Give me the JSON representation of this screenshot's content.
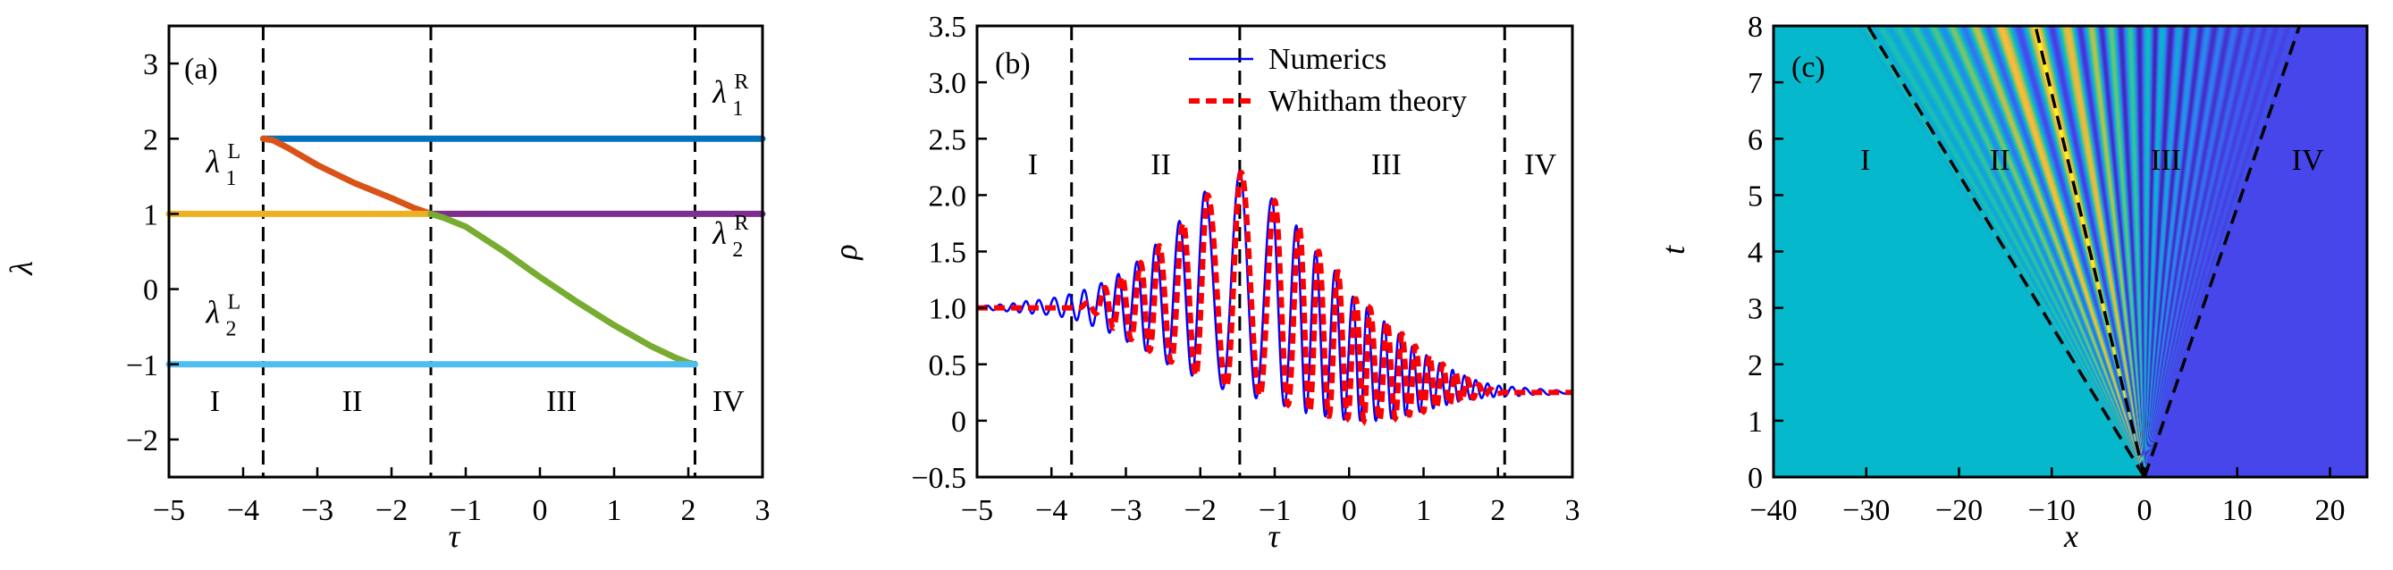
{
  "chart_data": [
    {
      "type": "line",
      "panel_label": "(a)",
      "xlabel": "τ",
      "ylabel": "λ",
      "xlim": [
        -5,
        3
      ],
      "ylim": [
        -2.5,
        3.5
      ],
      "xticks": [
        -5,
        -4,
        -3,
        -2,
        -1,
        0,
        1,
        2,
        3
      ],
      "xtick_labels": [
        "−5",
        "−4",
        "−3",
        "−2",
        "−1",
        "0",
        "1",
        "2",
        "3"
      ],
      "yticks": [
        -2,
        -1,
        0,
        1,
        2,
        3
      ],
      "ytick_labels": [
        "−2",
        "−1",
        "0",
        "1",
        "2",
        "3"
      ],
      "boundaries": [
        -3.73,
        -1.47,
        2.09
      ],
      "regions": [
        "I",
        "II",
        "III",
        "IV"
      ],
      "series": [
        {
          "name": "lambda1R",
          "color": "#0072BD",
          "points": [
            [
              -3.73,
              2.0
            ],
            [
              3.0,
              2.0
            ]
          ]
        },
        {
          "name": "lambda-orange",
          "color": "#D95319",
          "points": [
            [
              -3.73,
              2.0
            ],
            [
              -3.6,
              1.98
            ],
            [
              -3.4,
              1.88
            ],
            [
              -3.0,
              1.65
            ],
            [
              -2.5,
              1.41
            ],
            [
              -2.0,
              1.21
            ],
            [
              -1.7,
              1.08
            ],
            [
              -1.47,
              1.0
            ]
          ]
        },
        {
          "name": "lambda1L",
          "color": "#EDB120",
          "points": [
            [
              -5.0,
              1.0
            ],
            [
              -1.47,
              1.0
            ]
          ]
        },
        {
          "name": "lambda2R",
          "color": "#7E2F8E",
          "points": [
            [
              -1.47,
              1.0
            ],
            [
              3.0,
              1.0
            ]
          ]
        },
        {
          "name": "lambda-green",
          "color": "#77AC30",
          "points": [
            [
              -1.47,
              1.0
            ],
            [
              -1.3,
              0.95
            ],
            [
              -1.0,
              0.83
            ],
            [
              -0.5,
              0.51
            ],
            [
              0.0,
              0.16
            ],
            [
              0.5,
              -0.17
            ],
            [
              1.0,
              -0.48
            ],
            [
              1.5,
              -0.76
            ],
            [
              1.8,
              -0.9
            ],
            [
              2.0,
              -0.98
            ],
            [
              2.09,
              -1.0
            ]
          ]
        },
        {
          "name": "lambda2L",
          "color": "#4DBEEE",
          "points": [
            [
              -5.0,
              -1.0
            ],
            [
              2.09,
              -1.0
            ]
          ]
        }
      ],
      "annotations": [
        {
          "base": "λ",
          "sup": "R",
          "sub": "1"
        },
        {
          "base": "λ",
          "sup": "R",
          "sub": "2"
        },
        {
          "base": "λ",
          "sup": "L",
          "sub": "1"
        },
        {
          "base": "λ",
          "sup": "L",
          "sub": "2"
        }
      ]
    },
    {
      "type": "line",
      "panel_label": "(b)",
      "xlabel": "τ",
      "ylabel": "ρ",
      "xlim": [
        -5,
        3
      ],
      "ylim": [
        -0.5,
        3.5
      ],
      "xticks": [
        -5,
        -4,
        -3,
        -2,
        -1,
        0,
        1,
        2,
        3
      ],
      "xtick_labels": [
        "−5",
        "−4",
        "−3",
        "−2",
        "−1",
        "0",
        "1",
        "2",
        "3"
      ],
      "yticks": [
        -0.5,
        0,
        0.5,
        1.0,
        1.5,
        2.0,
        2.5,
        3.0,
        3.5
      ],
      "ytick_labels": [
        "−0.5",
        "0",
        "0.5",
        "1.0",
        "1.5",
        "2.0",
        "2.5",
        "3.0",
        "3.5"
      ],
      "boundaries": [
        -3.73,
        -1.47,
        2.09
      ],
      "regions": [
        "I",
        "II",
        "III",
        "IV"
      ],
      "legend": {
        "placement": "top-right",
        "entries": [
          "Numerics",
          "Whitham theory"
        ]
      },
      "series": [
        {
          "name": "Numerics",
          "color": "#0000FF",
          "style": "solid",
          "extrema": [
            [
              -5,
              1.0
            ],
            [
              -4.86,
              1.02
            ],
            [
              -4.78,
              0.98
            ],
            [
              -4.69,
              1.03
            ],
            [
              -4.6,
              0.97
            ],
            [
              -4.51,
              1.04
            ],
            [
              -4.43,
              0.96
            ],
            [
              -4.34,
              1.06
            ],
            [
              -4.26,
              0.95
            ],
            [
              -4.17,
              1.07
            ],
            [
              -4.07,
              0.94
            ],
            [
              -3.96,
              1.09
            ],
            [
              -3.86,
              0.92
            ],
            [
              -3.76,
              1.12
            ],
            [
              -3.66,
              0.89
            ],
            [
              -3.56,
              1.16
            ],
            [
              -3.45,
              0.84
            ],
            [
              -3.33,
              1.22
            ],
            [
              -3.22,
              0.78
            ],
            [
              -3.1,
              1.3
            ],
            [
              -2.98,
              0.7
            ],
            [
              -2.85,
              1.41
            ],
            [
              -2.73,
              0.62
            ],
            [
              -2.6,
              1.56
            ],
            [
              -2.44,
              0.5
            ],
            [
              -2.28,
              1.77
            ],
            [
              -2.11,
              0.4
            ],
            [
              -1.94,
              2.03
            ],
            [
              -1.7,
              0.28
            ],
            [
              -1.47,
              2.21
            ],
            [
              -1.25,
              0.2
            ],
            [
              -1.04,
              1.97
            ],
            [
              -0.87,
              0.13
            ],
            [
              -0.71,
              1.73
            ],
            [
              -0.58,
              0.07
            ],
            [
              -0.45,
              1.5
            ],
            [
              -0.32,
              0.04
            ],
            [
              -0.19,
              1.33
            ],
            [
              -0.07,
              0.01
            ],
            [
              0.05,
              1.1
            ],
            [
              0.15,
              0.0
            ],
            [
              0.24,
              1.0
            ],
            [
              0.36,
              0.0
            ],
            [
              0.47,
              0.88
            ],
            [
              0.57,
              0.02
            ],
            [
              0.67,
              0.77
            ],
            [
              0.76,
              0.05
            ],
            [
              0.85,
              0.66
            ],
            [
              0.95,
              0.08
            ],
            [
              1.04,
              0.58
            ],
            [
              1.13,
              0.11
            ],
            [
              1.22,
              0.51
            ],
            [
              1.31,
              0.14
            ],
            [
              1.39,
              0.45
            ],
            [
              1.47,
              0.17
            ],
            [
              1.55,
              0.4
            ],
            [
              1.63,
              0.19
            ],
            [
              1.7,
              0.36
            ],
            [
              1.78,
              0.2
            ],
            [
              1.86,
              0.33
            ],
            [
              1.94,
              0.21
            ],
            [
              2.01,
              0.31
            ],
            [
              2.1,
              0.22
            ],
            [
              2.19,
              0.3
            ],
            [
              2.28,
              0.22
            ],
            [
              2.36,
              0.29
            ],
            [
              2.47,
              0.23
            ],
            [
              2.57,
              0.28
            ],
            [
              2.68,
              0.23
            ],
            [
              2.78,
              0.27
            ],
            [
              2.9,
              0.24
            ],
            [
              3.0,
              0.26
            ]
          ]
        },
        {
          "name": "Whitham theory",
          "color": "#FF0000",
          "style": "dashed",
          "extrema": [
            [
              -5,
              1.0
            ],
            [
              -3.73,
              1.0
            ],
            [
              -3.62,
              1.0
            ],
            [
              -3.51,
              1.05
            ],
            [
              -3.4,
              0.95
            ],
            [
              -3.28,
              1.18
            ],
            [
              -3.17,
              0.82
            ],
            [
              -3.05,
              1.28
            ],
            [
              -2.93,
              0.72
            ],
            [
              -2.8,
              1.4
            ],
            [
              -2.68,
              0.62
            ],
            [
              -2.55,
              1.55
            ],
            [
              -2.39,
              0.52
            ],
            [
              -2.23,
              1.75
            ],
            [
              -2.06,
              0.4
            ],
            [
              -1.9,
              2.0
            ],
            [
              -1.65,
              0.3
            ],
            [
              -1.45,
              2.2
            ],
            [
              -1.2,
              0.22
            ],
            [
              -1.0,
              1.95
            ],
            [
              -0.82,
              0.14
            ],
            [
              -0.67,
              1.72
            ],
            [
              -0.53,
              0.08
            ],
            [
              -0.41,
              1.5
            ],
            [
              -0.27,
              0.04
            ],
            [
              -0.15,
              1.32
            ],
            [
              -0.02,
              0.02
            ],
            [
              0.09,
              1.08
            ],
            [
              0.2,
              0.0
            ],
            [
              0.28,
              1.0
            ],
            [
              0.41,
              0.0
            ],
            [
              0.51,
              0.88
            ],
            [
              0.62,
              0.02
            ],
            [
              0.71,
              0.77
            ],
            [
              0.81,
              0.05
            ],
            [
              0.89,
              0.66
            ],
            [
              1.0,
              0.08
            ],
            [
              1.08,
              0.58
            ],
            [
              1.17,
              0.11
            ],
            [
              1.26,
              0.5
            ],
            [
              1.35,
              0.14
            ],
            [
              1.43,
              0.43
            ],
            [
              1.51,
              0.17
            ],
            [
              1.59,
              0.37
            ],
            [
              1.67,
              0.2
            ],
            [
              1.74,
              0.32
            ],
            [
              1.82,
              0.22
            ],
            [
              1.9,
              0.28
            ],
            [
              1.98,
              0.24
            ],
            [
              2.09,
              0.25
            ],
            [
              3.0,
              0.25
            ]
          ]
        }
      ]
    },
    {
      "type": "heatmap",
      "panel_label": "(c)",
      "xlabel": "x",
      "ylabel": "t",
      "xlim": [
        -40,
        24
      ],
      "ylim": [
        0,
        8
      ],
      "xticks": [
        -40,
        -30,
        -20,
        -10,
        0,
        10,
        20
      ],
      "xtick_labels": [
        "−40",
        "−30",
        "−20",
        "−10",
        "0",
        "10",
        "20"
      ],
      "yticks": [
        0,
        1,
        2,
        3,
        4,
        5,
        6,
        7,
        8
      ],
      "ytick_labels": [
        "0",
        "1",
        "2",
        "3",
        "4",
        "5",
        "6",
        "7",
        "8"
      ],
      "value": "ρ(x,t) ≈ profile of panel (b) evaluated at τ = x/t",
      "colorscale": [
        [
          0.0,
          "#3D26A8"
        ],
        [
          0.25,
          "#4646EA"
        ],
        [
          0.6,
          "#2A86EE"
        ],
        [
          1.0,
          "#06B8CB"
        ],
        [
          1.4,
          "#4CC48A"
        ],
        [
          1.7,
          "#B5C050"
        ],
        [
          2.0,
          "#F8B93C"
        ],
        [
          2.2,
          "#F9F820"
        ]
      ],
      "boundary_slopes": [
        -3.73,
        -1.47,
        2.09
      ],
      "regions": [
        "I",
        "II",
        "III",
        "IV"
      ]
    }
  ]
}
